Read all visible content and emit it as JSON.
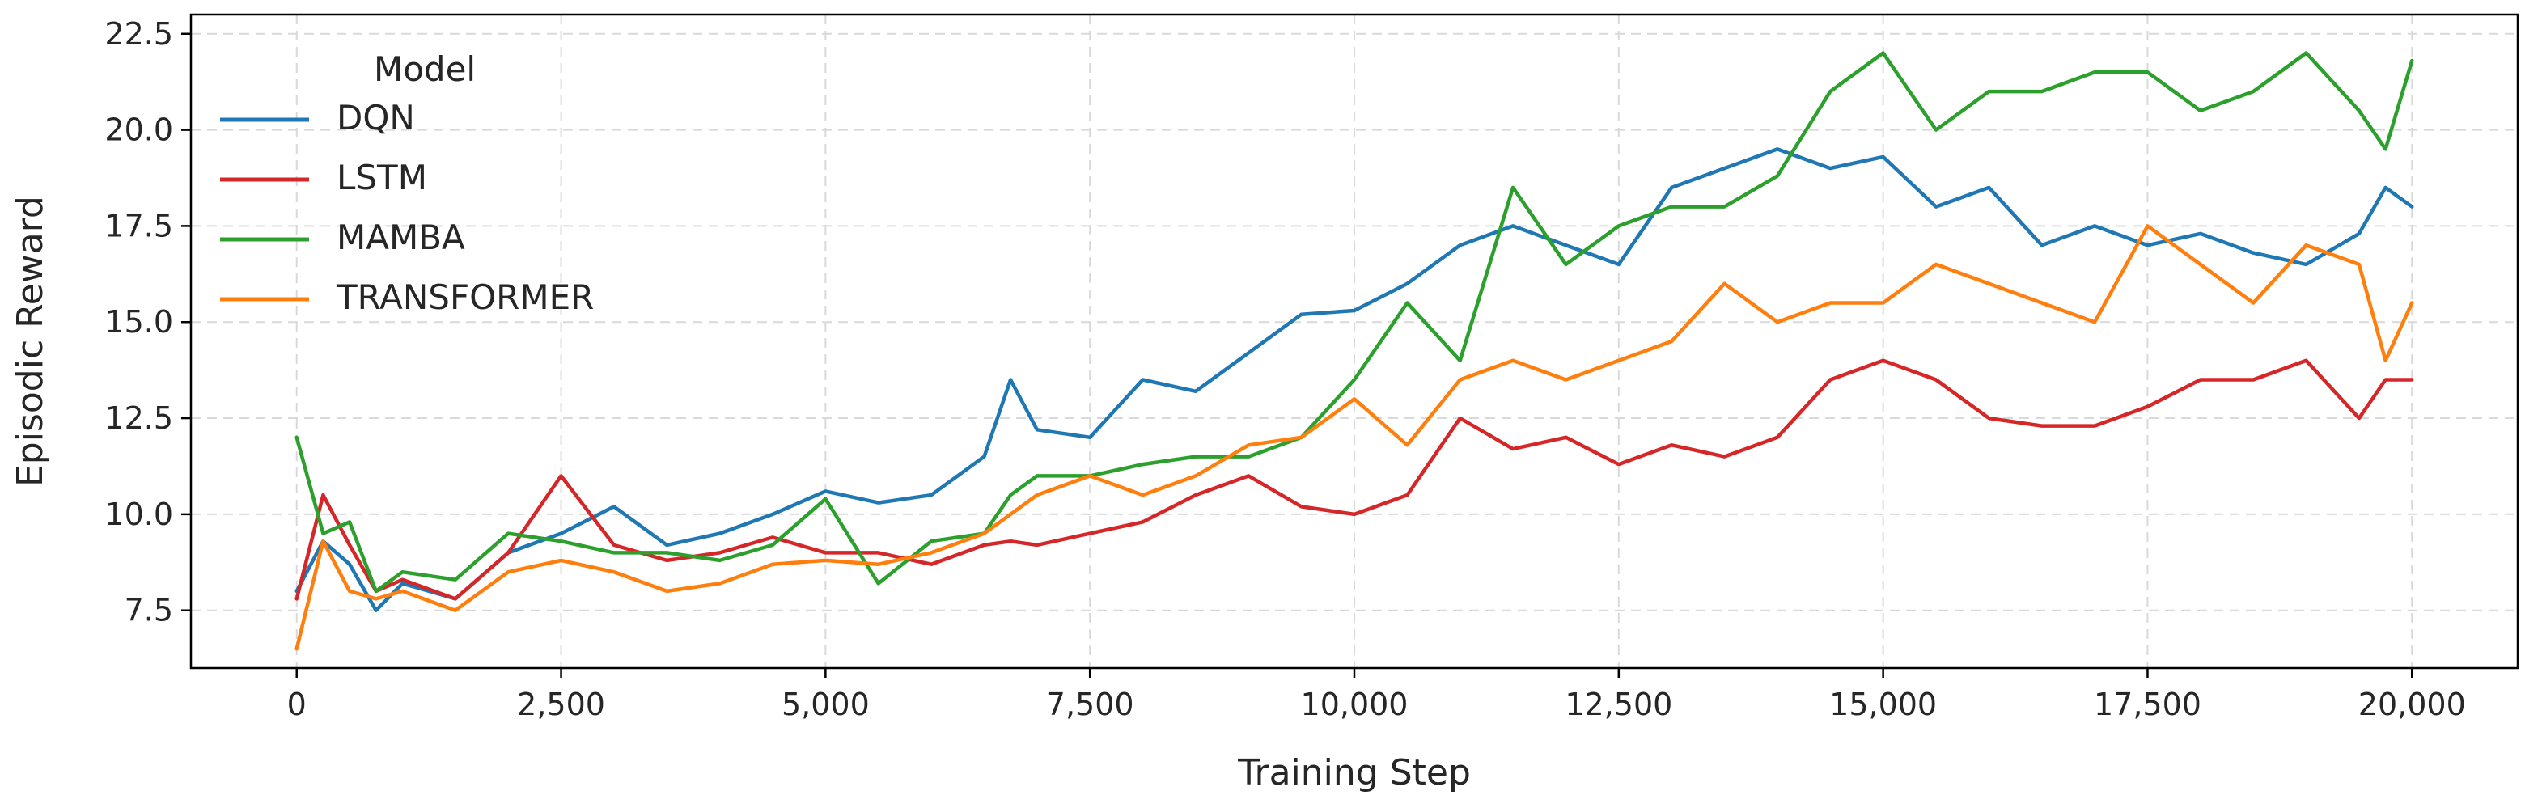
{
  "chart_data": {
    "type": "line",
    "title": "",
    "xlabel": "Training Step",
    "ylabel": "Episodic Reward",
    "xlim": [
      -1000,
      21000
    ],
    "ylim": [
      6.0,
      23.0
    ],
    "x_ticks": [
      0,
      2500,
      5000,
      7500,
      10000,
      12500,
      15000,
      17500,
      20000
    ],
    "x_tick_labels": [
      "0",
      "2,500",
      "5,000",
      "7,500",
      "10,000",
      "12,500",
      "15,000",
      "17,500",
      "20,000"
    ],
    "y_ticks": [
      7.5,
      10.0,
      12.5,
      15.0,
      17.5,
      20.0,
      22.5
    ],
    "y_tick_labels": [
      "7.5",
      "10.0",
      "12.5",
      "15.0",
      "17.5",
      "20.0",
      "22.5"
    ],
    "grid": true,
    "legend": {
      "title": "Model",
      "placement": "top-left"
    },
    "x": [
      0,
      250,
      500,
      750,
      1000,
      1500,
      2000,
      2500,
      3000,
      3500,
      4000,
      4500,
      5000,
      5500,
      6000,
      6500,
      6750,
      7000,
      7500,
      8000,
      8500,
      9000,
      9500,
      10000,
      10500,
      11000,
      11500,
      12000,
      12500,
      13000,
      13500,
      14000,
      14500,
      15000,
      15500,
      16000,
      16500,
      17000,
      17500,
      18000,
      18500,
      19000,
      19500,
      19750,
      20000
    ],
    "series": [
      {
        "name": "DQN",
        "color": "#1f77b4",
        "values": [
          8.0,
          9.3,
          8.7,
          7.5,
          8.2,
          7.8,
          9.0,
          9.5,
          10.2,
          9.2,
          9.5,
          10.0,
          10.6,
          10.3,
          10.5,
          11.5,
          13.5,
          12.2,
          12.0,
          13.5,
          13.2,
          14.2,
          15.2,
          15.3,
          16.0,
          17.0,
          17.5,
          17.0,
          16.5,
          18.5,
          19.0,
          19.5,
          19.0,
          19.3,
          18.0,
          18.5,
          17.0,
          17.5,
          17.0,
          17.3,
          16.8,
          16.5,
          17.3,
          18.5,
          18.0
        ]
      },
      {
        "name": "LSTM",
        "color": "#d62728",
        "values": [
          7.8,
          10.5,
          9.2,
          8.0,
          8.3,
          7.8,
          9.0,
          11.0,
          9.2,
          8.8,
          9.0,
          9.4,
          9.0,
          9.0,
          8.7,
          9.2,
          9.3,
          9.2,
          9.5,
          9.8,
          10.5,
          11.0,
          10.2,
          10.0,
          10.5,
          12.5,
          11.7,
          12.0,
          11.3,
          11.8,
          11.5,
          12.0,
          13.5,
          14.0,
          13.5,
          12.5,
          12.3,
          12.3,
          12.8,
          13.5,
          13.5,
          14.0,
          12.5,
          13.5,
          13.5
        ]
      },
      {
        "name": "MAMBA",
        "color": "#2ca02c",
        "values": [
          12.0,
          9.5,
          9.8,
          8.0,
          8.5,
          8.3,
          9.5,
          9.3,
          9.0,
          9.0,
          8.8,
          9.2,
          10.4,
          8.2,
          9.3,
          9.5,
          10.5,
          11.0,
          11.0,
          11.3,
          11.5,
          11.5,
          12.0,
          13.5,
          15.5,
          14.0,
          18.5,
          16.5,
          17.5,
          18.0,
          18.0,
          18.8,
          21.0,
          22.0,
          20.0,
          21.0,
          21.0,
          21.5,
          21.5,
          20.5,
          21.0,
          22.0,
          20.5,
          19.5,
          21.8
        ]
      },
      {
        "name": "TRANSFORMER",
        "color": "#ff7f0e",
        "values": [
          6.5,
          9.3,
          8.0,
          7.8,
          8.0,
          7.5,
          8.5,
          8.8,
          8.5,
          8.0,
          8.2,
          8.7,
          8.8,
          8.7,
          9.0,
          9.5,
          10.0,
          10.5,
          11.0,
          10.5,
          11.0,
          11.8,
          12.0,
          13.0,
          11.8,
          13.5,
          14.0,
          13.5,
          14.0,
          14.5,
          16.0,
          15.0,
          15.5,
          15.5,
          16.5,
          16.0,
          15.5,
          15.0,
          17.5,
          16.5,
          15.5,
          17.0,
          16.5,
          14.0,
          15.5
        ]
      }
    ]
  }
}
